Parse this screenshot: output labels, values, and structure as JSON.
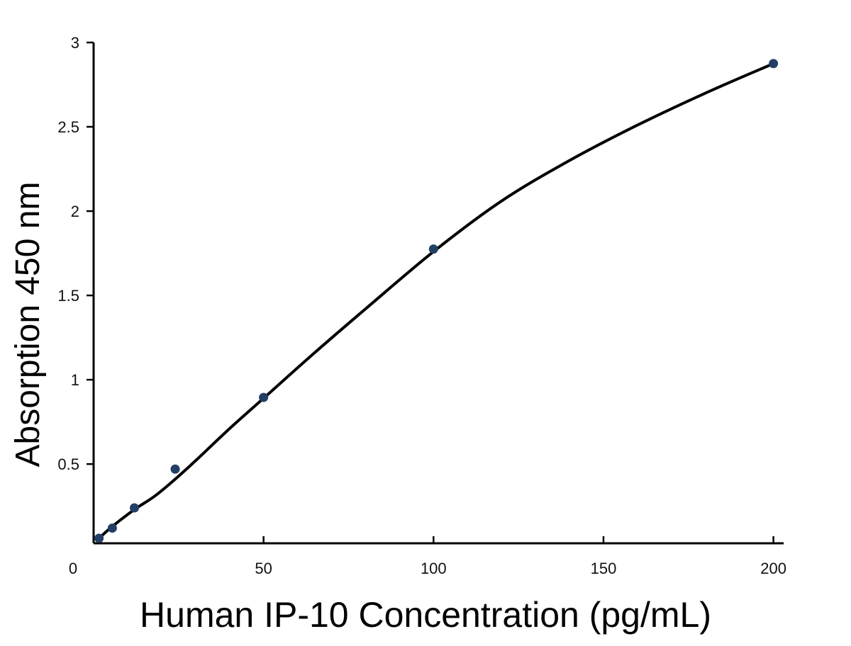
{
  "chart_data": {
    "type": "scatter",
    "title": "",
    "xlabel": "Human IP-10 Concentration (pg/mL)",
    "ylabel": "Absorption 450 nm",
    "xlim": [
      0,
      203
    ],
    "ylim": [
      0.03,
      3
    ],
    "x_ticks": [
      0,
      50,
      100,
      150,
      200
    ],
    "y_ticks": [
      0.5,
      1,
      1.5,
      2,
      2.5,
      3
    ],
    "grid": false,
    "legend": "none",
    "point_color": "#243f66",
    "line_color": "#000000",
    "series": [
      {
        "points": [
          {
            "x": 1.6,
            "y": 0.06
          },
          {
            "x": 5.5,
            "y": 0.12
          },
          {
            "x": 12,
            "y": 0.24
          },
          {
            "x": 24,
            "y": 0.47
          },
          {
            "x": 50,
            "y": 0.895
          },
          {
            "x": 100,
            "y": 1.775
          },
          {
            "x": 200,
            "y": 2.875
          }
        ]
      }
    ],
    "fit_curve": [
      {
        "x": 1.6,
        "y": 0.06
      },
      {
        "x": 5.5,
        "y": 0.13
      },
      {
        "x": 12,
        "y": 0.23
      },
      {
        "x": 18,
        "y": 0.31
      },
      {
        "x": 24,
        "y": 0.41
      },
      {
        "x": 30,
        "y": 0.52
      },
      {
        "x": 40,
        "y": 0.71
      },
      {
        "x": 50,
        "y": 0.89
      },
      {
        "x": 65,
        "y": 1.16
      },
      {
        "x": 80,
        "y": 1.42
      },
      {
        "x": 100,
        "y": 1.76
      },
      {
        "x": 120,
        "y": 2.06
      },
      {
        "x": 140,
        "y": 2.3
      },
      {
        "x": 160,
        "y": 2.51
      },
      {
        "x": 180,
        "y": 2.7
      },
      {
        "x": 200,
        "y": 2.875
      }
    ]
  }
}
